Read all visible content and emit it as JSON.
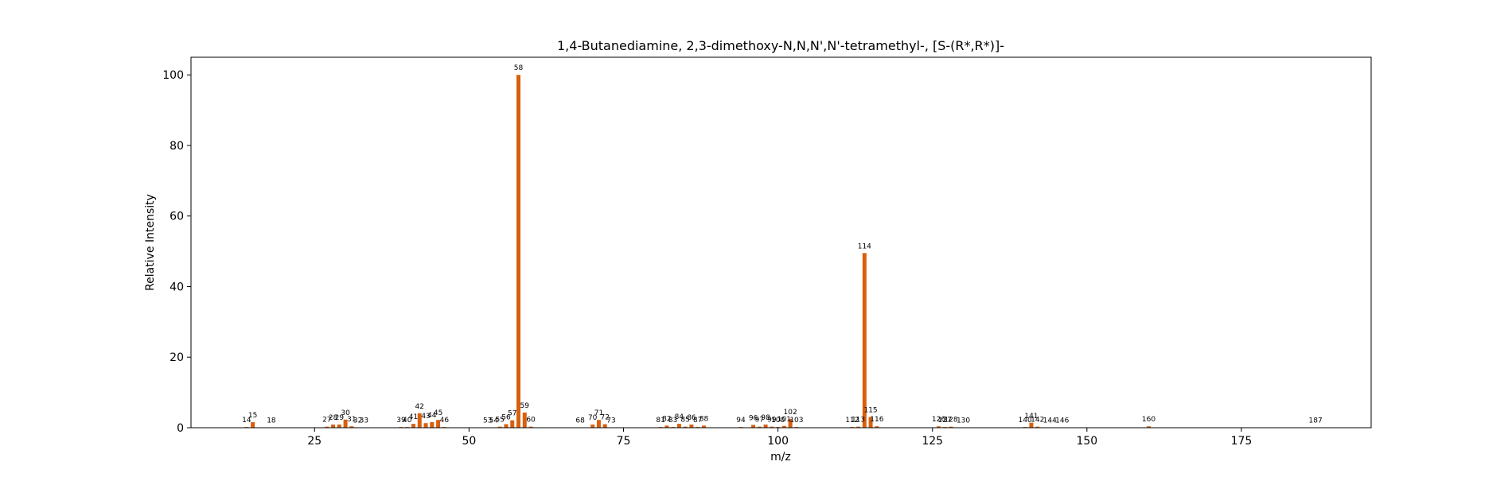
{
  "chart_data": {
    "type": "bar",
    "title": "1,4-Butanediamine, 2,3-dimethoxy-N,N,N',N'-tetramethyl-, [S-(R*,R*)]-",
    "xlabel": "m/z",
    "ylabel": "Relative Intensity",
    "xlim": [
      5,
      196
    ],
    "ylim": [
      0,
      105
    ],
    "xticks": [
      25,
      50,
      75,
      100,
      125,
      150,
      175
    ],
    "yticks": [
      0,
      20,
      40,
      60,
      80,
      100
    ],
    "grid": false,
    "bar_color": "#d95f0e",
    "x": [
      14,
      15,
      18,
      27,
      28,
      29,
      30,
      31,
      32,
      33,
      39,
      40,
      41,
      42,
      43,
      44,
      45,
      46,
      53,
      54,
      55,
      56,
      57,
      58,
      59,
      60,
      68,
      70,
      71,
      72,
      73,
      81,
      82,
      83,
      84,
      85,
      86,
      87,
      88,
      94,
      96,
      97,
      98,
      99,
      100,
      101,
      102,
      103,
      112,
      113,
      114,
      115,
      116,
      126,
      127,
      128,
      130,
      140,
      141,
      142,
      144,
      146,
      160,
      187
    ],
    "values": [
      0.2,
      1.6,
      0.1,
      0.3,
      0.9,
      0.9,
      2.3,
      0.4,
      0.1,
      0.1,
      0.2,
      0.2,
      1.1,
      4.1,
      1.3,
      1.6,
      2.2,
      0.2,
      0.1,
      0.1,
      0.3,
      1.0,
      2.1,
      100,
      4.3,
      0.3,
      0.1,
      0.9,
      2.2,
      1.0,
      0.1,
      0.2,
      0.6,
      0.2,
      1.1,
      0.3,
      0.9,
      0.2,
      0.6,
      0.2,
      0.8,
      0.3,
      0.9,
      0.3,
      0.2,
      0.5,
      2.5,
      0.2,
      0.2,
      0.3,
      49.5,
      3.0,
      0.4,
      0.4,
      0.2,
      0.3,
      0.1,
      0.2,
      1.4,
      0.3,
      0.1,
      0.1,
      0.4,
      0.1
    ]
  }
}
